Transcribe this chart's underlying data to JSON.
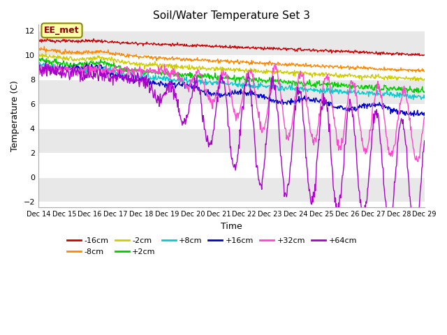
{
  "title": "Soil/Water Temperature Set 3",
  "xlabel": "Time",
  "ylabel": "Temperature (C)",
  "ylim": [
    -2.5,
    12.5
  ],
  "yticks": [
    -2,
    0,
    2,
    4,
    6,
    8,
    10,
    12
  ],
  "annotation": "EE_met",
  "series_names": [
    "-16cm",
    "-8cm",
    "-2cm",
    "+2cm",
    "+8cm",
    "+16cm",
    "+32cm",
    "+64cm"
  ],
  "series_colors": {
    "-16cm": "#cc0000",
    "-8cm": "#ff8800",
    "-2cm": "#cccc00",
    "+2cm": "#00cc00",
    "+8cm": "#00cccc",
    "+16cm": "#0000cc",
    "+32cm": "#ff44cc",
    "+64cm": "#aa00cc"
  },
  "n_points": 720,
  "n_days": 15,
  "background_color": "#ffffff",
  "plot_bg": "#ffffff",
  "stripe_color": "#e8e8e8"
}
